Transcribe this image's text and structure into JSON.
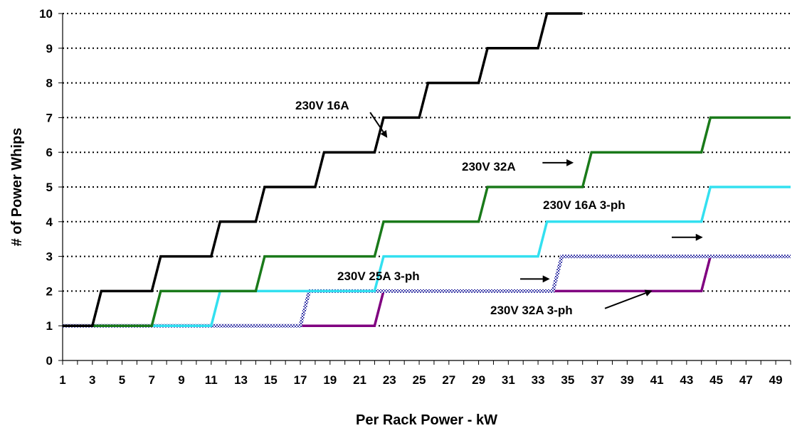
{
  "chart_data": {
    "type": "line",
    "title": "",
    "xlabel": "Per Rack Power - kW",
    "ylabel": "# of Power Whips",
    "xlim": [
      1,
      50
    ],
    "ylim": [
      0,
      10
    ],
    "x_tick_labels": [
      "1",
      "3",
      "5",
      "7",
      "9",
      "11",
      "13",
      "15",
      "17",
      "19",
      "21",
      "23",
      "25",
      "27",
      "29",
      "31",
      "33",
      "35",
      "37",
      "39",
      "41",
      "43",
      "45",
      "47",
      "49"
    ],
    "y_tick_labels": [
      "0",
      "1",
      "2",
      "3",
      "4",
      "5",
      "6",
      "7",
      "8",
      "9",
      "10"
    ],
    "grid": "horizontal dotted",
    "legend": "none",
    "series": [
      {
        "name": "230V 16A",
        "color": "#000000",
        "style": "solid",
        "points": [
          [
            1,
            1
          ],
          [
            3,
            1
          ],
          [
            3.6,
            2
          ],
          [
            7,
            2
          ],
          [
            7.6,
            3
          ],
          [
            11,
            3
          ],
          [
            11.6,
            4
          ],
          [
            14,
            4
          ],
          [
            14.6,
            5
          ],
          [
            18,
            5
          ],
          [
            18.6,
            6
          ],
          [
            22,
            6
          ],
          [
            22.6,
            7
          ],
          [
            25,
            7
          ],
          [
            25.6,
            8
          ],
          [
            29,
            8
          ],
          [
            29.6,
            9
          ],
          [
            33,
            9
          ],
          [
            33.6,
            10
          ],
          [
            36,
            10
          ]
        ]
      },
      {
        "name": "230V 32A",
        "color": "#1a7a1a",
        "style": "solid",
        "points": [
          [
            1,
            1
          ],
          [
            7,
            1
          ],
          [
            7.6,
            2
          ],
          [
            14,
            2
          ],
          [
            14.6,
            3
          ],
          [
            22,
            3
          ],
          [
            22.6,
            4
          ],
          [
            29,
            4
          ],
          [
            29.6,
            5
          ],
          [
            36,
            5
          ],
          [
            36.6,
            6
          ],
          [
            44,
            6
          ],
          [
            44.6,
            7
          ],
          [
            50,
            7
          ]
        ]
      },
      {
        "name": "230V 16A 3-ph",
        "color": "#33e0f0",
        "style": "solid",
        "points": [
          [
            1,
            1
          ],
          [
            11,
            1
          ],
          [
            11.6,
            2
          ],
          [
            22,
            2
          ],
          [
            22.6,
            3
          ],
          [
            33,
            3
          ],
          [
            33.6,
            4
          ],
          [
            44,
            4
          ],
          [
            44.6,
            5
          ],
          [
            50,
            5
          ]
        ]
      },
      {
        "name": "230V 25A 3-ph",
        "color": "#3a3aa8",
        "style": "checkered",
        "points": [
          [
            1,
            1
          ],
          [
            17,
            1
          ],
          [
            17.6,
            2
          ],
          [
            34,
            2
          ],
          [
            34.6,
            3
          ],
          [
            50,
            3
          ]
        ]
      },
      {
        "name": "230V 32A 3-ph",
        "color": "#800080",
        "style": "solid",
        "points": [
          [
            1,
            1
          ],
          [
            22,
            1
          ],
          [
            22.6,
            2
          ],
          [
            44,
            2
          ],
          [
            44.6,
            3
          ],
          [
            50,
            3
          ]
        ]
      }
    ],
    "annotations": [
      {
        "text": "230V 16A",
        "series": "230V 16A",
        "arrow_from": [
          21.7,
          7.15
        ],
        "arrow_to": [
          22.8,
          6.45
        ]
      },
      {
        "text": "230V 32A",
        "series": "230V 32A",
        "arrow_from": [
          33.3,
          5.7
        ],
        "arrow_to": [
          35.3,
          5.7
        ]
      },
      {
        "text": "230V 16A 3-ph",
        "series": "230V 16A 3-ph",
        "arrow_from": [
          42.0,
          3.55
        ],
        "arrow_to": [
          44.0,
          3.55
        ]
      },
      {
        "text": "230V 25A 3-ph",
        "series": "230V 25A 3-ph",
        "arrow_from": [
          31.8,
          2.35
        ],
        "arrow_to": [
          33.7,
          2.35
        ]
      },
      {
        "text": "230V 32A 3-ph",
        "series": "230V 32A 3-ph",
        "arrow_from": [
          37.5,
          1.5
        ],
        "arrow_to": [
          40.6,
          2.0
        ]
      }
    ]
  }
}
